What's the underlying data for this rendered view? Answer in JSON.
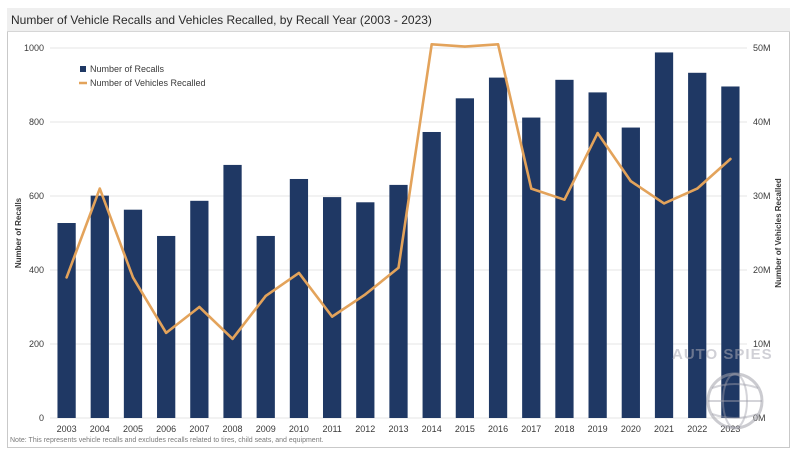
{
  "title": "Number of Vehicle Recalls and Vehicles Recalled, by Recall Year (2003 - 2023)",
  "note": "Note: This represents vehicle recalls and excludes recalls related to tires, child seats, and equipment.",
  "watermark": "AUTO SPIES",
  "colors": {
    "bars": "#1f3864",
    "line": "#e3a35b",
    "grid": "#e6e6e6",
    "axis_text": "#3a3a3a"
  },
  "chart_data": {
    "type": "bar",
    "categories": [
      "2003",
      "2004",
      "2005",
      "2006",
      "2007",
      "2008",
      "2009",
      "2010",
      "2011",
      "2012",
      "2013",
      "2014",
      "2015",
      "2016",
      "2017",
      "2018",
      "2019",
      "2020",
      "2021",
      "2022",
      "2023"
    ],
    "series": [
      {
        "name": "Number of Recalls",
        "type": "bar",
        "axis": "left",
        "values": [
          527,
          601,
          563,
          492,
          587,
          684,
          492,
          646,
          597,
          583,
          630,
          773,
          864,
          920,
          812,
          914,
          880,
          785,
          988,
          933,
          896
        ]
      },
      {
        "name": "Number of Vehicles Recalled",
        "type": "line",
        "axis": "right",
        "values": [
          19000000,
          31000000,
          19000000,
          11500000,
          15000000,
          10700000,
          16500000,
          19600000,
          13700000,
          16700000,
          20300000,
          50500000,
          50200000,
          50500000,
          31000000,
          29500000,
          38500000,
          32000000,
          29000000,
          31000000,
          35000000
        ]
      }
    ],
    "ylabel": "Number of Recalls",
    "ylabel_right": "Number of Vehicles Recalled",
    "ylim": [
      0,
      1000
    ],
    "ylim_right": [
      0,
      50000000
    ],
    "yticks": [
      "0",
      "200",
      "400",
      "600",
      "800",
      "1000"
    ],
    "yticks_right": [
      "0M",
      "10M",
      "20M",
      "30M",
      "40M",
      "50M"
    ],
    "grid": true,
    "legend_position": "top-left"
  }
}
